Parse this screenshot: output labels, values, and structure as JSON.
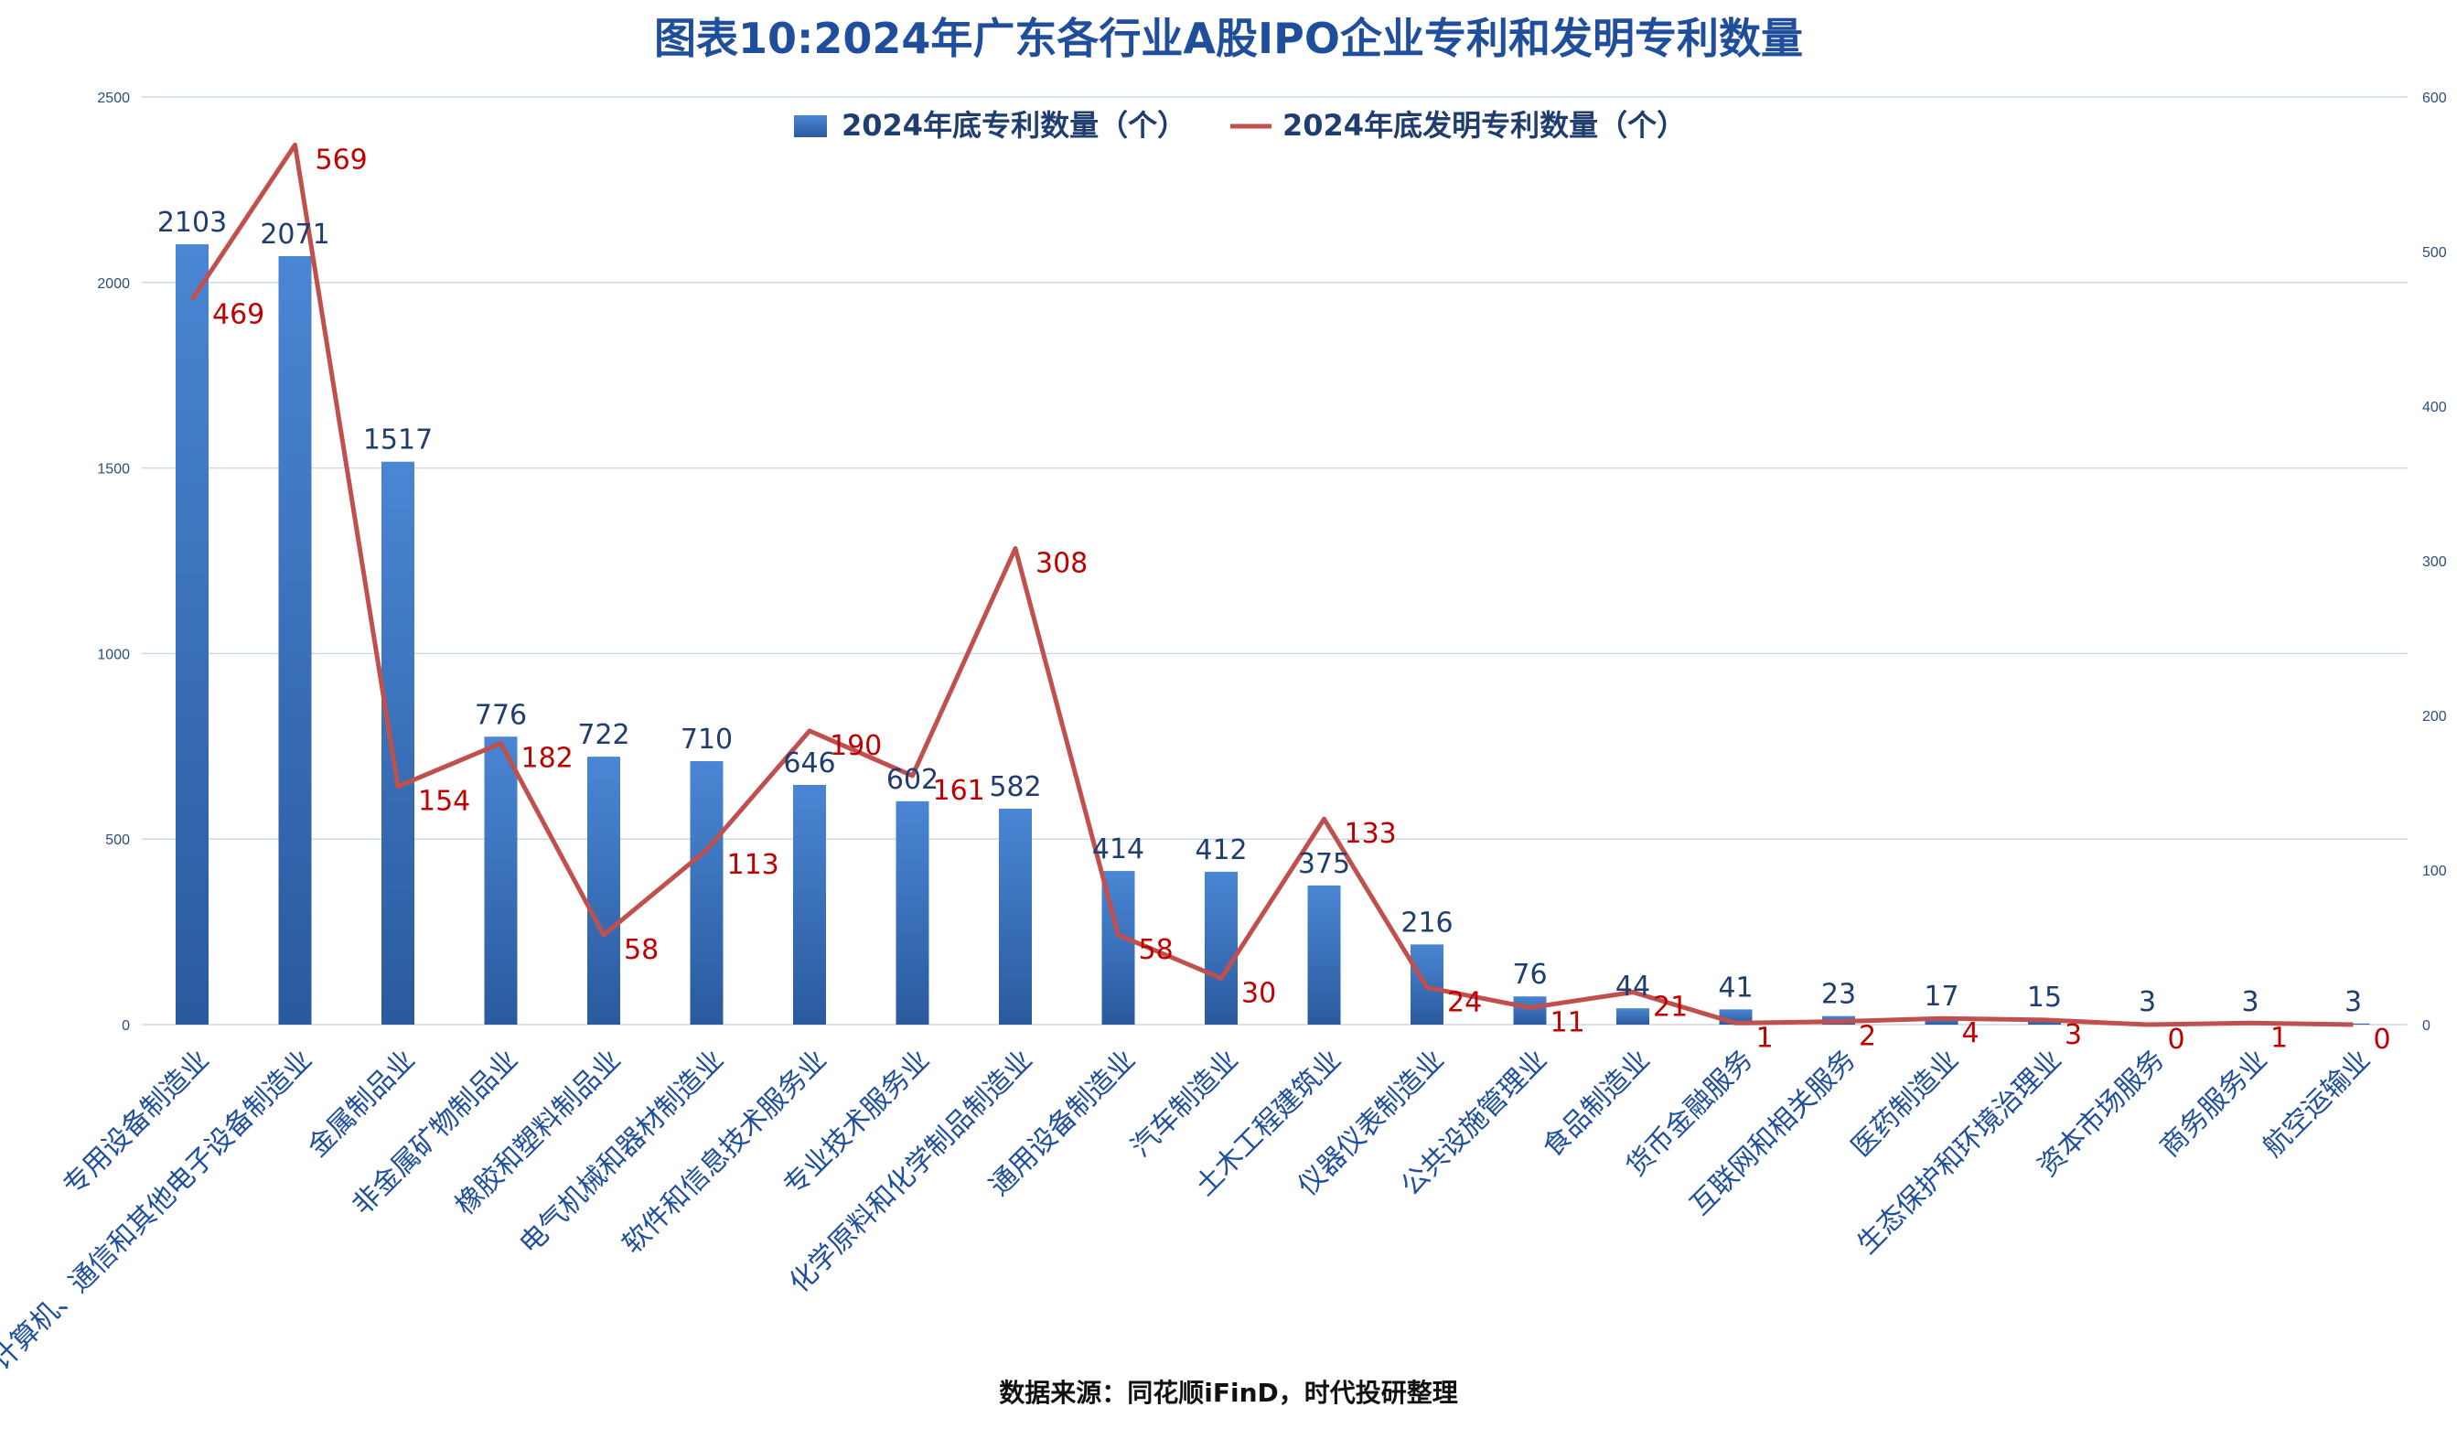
{
  "title": "图表10:2024年广东各行业A股IPO企业专利和发明专利数量",
  "source": "数据来源：同花顺iFinD，时代投研整理",
  "colors": {
    "title": "#1f4e9c",
    "bar_top": "#4a86d4",
    "bar_bottom": "#2a5a9e",
    "line": "#c0504d",
    "bar_label": "#1f3d6e",
    "line_label": "#c00000",
    "axis_tick": "#2e4d7b",
    "grid": "#c9dbe8",
    "category": "#1f4e9c",
    "source": "#111111"
  },
  "chart_data": {
    "type": "bar",
    "title": "图表10:2024年广东各行业A股IPO企业专利和发明专利数量",
    "categories": [
      "专用设备制造业",
      "计算机、通信和其他电子设备制造业",
      "金属制品业",
      "非金属矿物制品业",
      "橡胶和塑料制品业",
      "电气机械和器材制造业",
      "软件和信息技术服务业",
      "专业技术服务业",
      "化学原料和化学制品制造业",
      "通用设备制造业",
      "汽车制造业",
      "土木工程建筑业",
      "仪器仪表制造业",
      "公共设施管理业",
      "食品制造业",
      "货币金融服务",
      "互联网和相关服务",
      "医药制造业",
      "生态保护和环境治理业",
      "资本市场服务",
      "商务服务业",
      "航空运输业"
    ],
    "series": [
      {
        "name": "2024年底专利数量（个）",
        "type": "bar",
        "axis": "left",
        "values": [
          2103,
          2071,
          1517,
          776,
          722,
          710,
          646,
          602,
          582,
          414,
          412,
          375,
          216,
          76,
          44,
          41,
          23,
          17,
          15,
          3,
          3,
          3
        ]
      },
      {
        "name": "2024年底发明专利数量（个）",
        "type": "line",
        "axis": "right",
        "values": [
          469,
          569,
          154,
          182,
          58,
          113,
          190,
          161,
          308,
          58,
          30,
          133,
          24,
          11,
          21,
          1,
          2,
          4,
          3,
          0,
          1,
          0
        ]
      }
    ],
    "y_left": {
      "min": 0,
      "max": 2500,
      "ticks": [
        0,
        500,
        1000,
        1500,
        2000,
        2500
      ]
    },
    "y_right": {
      "min": 0,
      "max": 600,
      "ticks": [
        0,
        100,
        200,
        300,
        400,
        500,
        600
      ]
    },
    "grid": true,
    "legend_position": "top-center"
  }
}
